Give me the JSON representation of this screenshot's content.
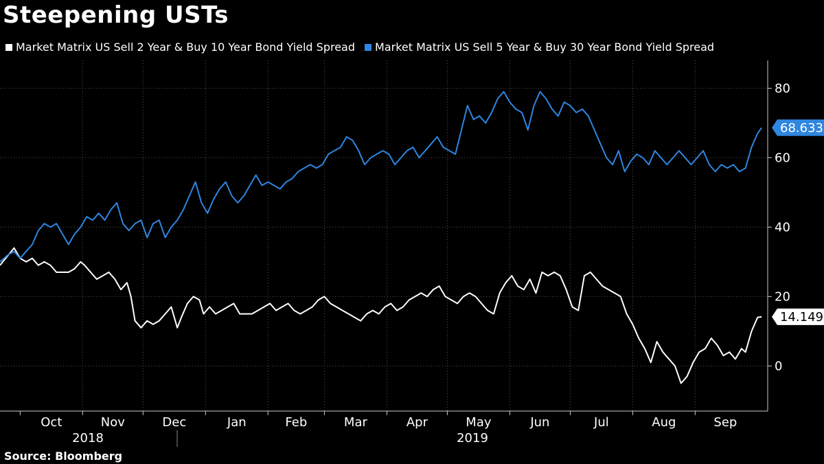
{
  "title": "Steepening USTs",
  "source": "Source:  Bloomberg",
  "colors": {
    "background": "#000000",
    "white_series": "#ffffff",
    "blue_series": "#2f86e0",
    "grid": "#555555"
  },
  "chart_data": {
    "type": "line",
    "title": "Steepening USTs",
    "xlabel": "",
    "ylabel": "",
    "ylim": [
      -13,
      88
    ],
    "yticks": [
      0,
      20,
      40,
      60,
      80
    ],
    "x_ticks": [
      "Oct",
      "Nov",
      "Dec",
      "Jan",
      "Feb",
      "Mar",
      "Apr",
      "May",
      "Jun",
      "Jul",
      "Aug",
      "Sep"
    ],
    "year_labels": [
      "2018",
      "2019"
    ],
    "x_range_days": [
      0,
      365
    ],
    "month_start_days": [
      0,
      31,
      61,
      92,
      123,
      151,
      182,
      212,
      243,
      273,
      304,
      335
    ],
    "series": [
      {
        "name": "Market Matrix US Sell 2 Year & Buy 10 Year Bond Yield Spread",
        "color": "#ffffff",
        "last_value": "14.149",
        "points": [
          [
            -10,
            29
          ],
          [
            -3,
            34
          ],
          [
            0,
            31
          ],
          [
            3,
            30
          ],
          [
            6,
            31
          ],
          [
            9,
            29
          ],
          [
            12,
            30
          ],
          [
            15,
            29
          ],
          [
            18,
            27
          ],
          [
            21,
            27
          ],
          [
            24,
            27
          ],
          [
            27,
            28
          ],
          [
            30,
            30
          ],
          [
            32,
            29
          ],
          [
            35,
            27
          ],
          [
            38,
            25
          ],
          [
            41,
            26
          ],
          [
            44,
            27
          ],
          [
            47,
            25
          ],
          [
            50,
            22
          ],
          [
            53,
            24
          ],
          [
            55,
            20
          ],
          [
            57,
            13
          ],
          [
            60,
            11
          ],
          [
            63,
            13
          ],
          [
            66,
            12
          ],
          [
            69,
            13
          ],
          [
            72,
            15
          ],
          [
            75,
            17
          ],
          [
            78,
            11
          ],
          [
            80,
            14
          ],
          [
            83,
            18
          ],
          [
            86,
            20
          ],
          [
            89,
            19
          ],
          [
            91,
            15
          ],
          [
            94,
            17
          ],
          [
            97,
            15
          ],
          [
            100,
            16
          ],
          [
            103,
            17
          ],
          [
            106,
            18
          ],
          [
            109,
            15
          ],
          [
            112,
            15
          ],
          [
            115,
            15
          ],
          [
            118,
            16
          ],
          [
            121,
            17
          ],
          [
            124,
            18
          ],
          [
            127,
            16
          ],
          [
            130,
            17
          ],
          [
            133,
            18
          ],
          [
            136,
            16
          ],
          [
            139,
            15
          ],
          [
            142,
            16
          ],
          [
            145,
            17
          ],
          [
            148,
            19
          ],
          [
            151,
            20
          ],
          [
            154,
            18
          ],
          [
            157,
            17
          ],
          [
            160,
            16
          ],
          [
            163,
            15
          ],
          [
            166,
            14
          ],
          [
            169,
            13
          ],
          [
            172,
            15
          ],
          [
            175,
            16
          ],
          [
            178,
            15
          ],
          [
            181,
            17
          ],
          [
            184,
            18
          ],
          [
            187,
            16
          ],
          [
            190,
            17
          ],
          [
            193,
            19
          ],
          [
            196,
            20
          ],
          [
            199,
            21
          ],
          [
            202,
            20
          ],
          [
            205,
            22
          ],
          [
            208,
            23
          ],
          [
            211,
            20
          ],
          [
            214,
            19
          ],
          [
            217,
            18
          ],
          [
            220,
            20
          ],
          [
            223,
            21
          ],
          [
            226,
            20
          ],
          [
            229,
            18
          ],
          [
            232,
            16
          ],
          [
            235,
            15
          ],
          [
            238,
            21
          ],
          [
            241,
            24
          ],
          [
            244,
            26
          ],
          [
            247,
            23
          ],
          [
            250,
            22
          ],
          [
            253,
            25
          ],
          [
            256,
            21
          ],
          [
            259,
            27
          ],
          [
            262,
            26
          ],
          [
            265,
            27
          ],
          [
            268,
            26
          ],
          [
            271,
            22
          ],
          [
            274,
            17
          ],
          [
            277,
            16
          ],
          [
            280,
            26
          ],
          [
            283,
            27
          ],
          [
            286,
            25
          ],
          [
            289,
            23
          ],
          [
            292,
            22
          ],
          [
            295,
            21
          ],
          [
            298,
            20
          ],
          [
            301,
            15
          ],
          [
            304,
            12
          ],
          [
            307,
            8
          ],
          [
            310,
            5
          ],
          [
            313,
            1
          ],
          [
            316,
            7
          ],
          [
            319,
            4
          ],
          [
            322,
            2
          ],
          [
            325,
            0
          ],
          [
            328,
            -5
          ],
          [
            331,
            -3
          ],
          [
            334,
            1
          ],
          [
            337,
            4
          ],
          [
            340,
            5
          ],
          [
            343,
            8
          ],
          [
            346,
            6
          ],
          [
            349,
            3
          ],
          [
            352,
            4
          ],
          [
            355,
            2
          ],
          [
            358,
            5
          ],
          [
            360,
            4
          ],
          [
            363,
            10
          ],
          [
            366,
            14
          ],
          [
            368,
            14.149
          ]
        ]
      },
      {
        "name": "Market Matrix US Sell 5 Year & Buy 30 Year Bond Yield Spread",
        "color": "#2f86e0",
        "last_value": "68.633",
        "points": [
          [
            -10,
            30
          ],
          [
            -6,
            32
          ],
          [
            -3,
            33
          ],
          [
            0,
            31
          ],
          [
            3,
            33
          ],
          [
            6,
            35
          ],
          [
            9,
            39
          ],
          [
            12,
            41
          ],
          [
            15,
            40
          ],
          [
            18,
            41
          ],
          [
            21,
            38
          ],
          [
            24,
            35
          ],
          [
            27,
            38
          ],
          [
            30,
            40
          ],
          [
            33,
            43
          ],
          [
            36,
            42
          ],
          [
            39,
            44
          ],
          [
            42,
            42
          ],
          [
            45,
            45
          ],
          [
            48,
            47
          ],
          [
            51,
            41
          ],
          [
            54,
            39
          ],
          [
            57,
            41
          ],
          [
            60,
            42
          ],
          [
            63,
            37
          ],
          [
            66,
            41
          ],
          [
            69,
            42
          ],
          [
            72,
            37
          ],
          [
            75,
            40
          ],
          [
            78,
            42
          ],
          [
            81,
            45
          ],
          [
            84,
            49
          ],
          [
            87,
            53
          ],
          [
            90,
            47
          ],
          [
            93,
            44
          ],
          [
            96,
            48
          ],
          [
            99,
            51
          ],
          [
            102,
            53
          ],
          [
            105,
            49
          ],
          [
            108,
            47
          ],
          [
            111,
            49
          ],
          [
            114,
            52
          ],
          [
            117,
            55
          ],
          [
            120,
            52
          ],
          [
            123,
            53
          ],
          [
            126,
            52
          ],
          [
            129,
            51
          ],
          [
            132,
            53
          ],
          [
            135,
            54
          ],
          [
            138,
            56
          ],
          [
            141,
            57
          ],
          [
            144,
            58
          ],
          [
            147,
            57
          ],
          [
            150,
            58
          ],
          [
            153,
            61
          ],
          [
            156,
            62
          ],
          [
            159,
            63
          ],
          [
            162,
            66
          ],
          [
            165,
            65
          ],
          [
            168,
            62
          ],
          [
            171,
            58
          ],
          [
            174,
            60
          ],
          [
            177,
            61
          ],
          [
            180,
            62
          ],
          [
            183,
            61
          ],
          [
            186,
            58
          ],
          [
            189,
            60
          ],
          [
            192,
            62
          ],
          [
            195,
            63
          ],
          [
            198,
            60
          ],
          [
            201,
            62
          ],
          [
            204,
            64
          ],
          [
            207,
            66
          ],
          [
            210,
            63
          ],
          [
            213,
            62
          ],
          [
            216,
            61
          ],
          [
            219,
            68
          ],
          [
            222,
            75
          ],
          [
            225,
            71
          ],
          [
            228,
            72
          ],
          [
            231,
            70
          ],
          [
            234,
            73
          ],
          [
            237,
            77
          ],
          [
            240,
            79
          ],
          [
            243,
            76
          ],
          [
            246,
            74
          ],
          [
            249,
            73
          ],
          [
            252,
            68
          ],
          [
            255,
            75
          ],
          [
            258,
            79
          ],
          [
            261,
            77
          ],
          [
            264,
            74
          ],
          [
            267,
            72
          ],
          [
            270,
            76
          ],
          [
            273,
            75
          ],
          [
            276,
            73
          ],
          [
            279,
            74
          ],
          [
            282,
            72
          ],
          [
            285,
            68
          ],
          [
            288,
            64
          ],
          [
            291,
            60
          ],
          [
            294,
            58
          ],
          [
            297,
            62
          ],
          [
            300,
            56
          ],
          [
            303,
            59
          ],
          [
            306,
            61
          ],
          [
            309,
            60
          ],
          [
            312,
            58
          ],
          [
            315,
            62
          ],
          [
            318,
            60
          ],
          [
            321,
            58
          ],
          [
            324,
            60
          ],
          [
            327,
            62
          ],
          [
            330,
            60
          ],
          [
            333,
            58
          ],
          [
            336,
            60
          ],
          [
            339,
            62
          ],
          [
            342,
            58
          ],
          [
            345,
            56
          ],
          [
            348,
            58
          ],
          [
            351,
            57
          ],
          [
            354,
            58
          ],
          [
            357,
            56
          ],
          [
            360,
            57
          ],
          [
            363,
            63
          ],
          [
            366,
            67
          ],
          [
            368,
            68.633
          ]
        ]
      }
    ]
  }
}
